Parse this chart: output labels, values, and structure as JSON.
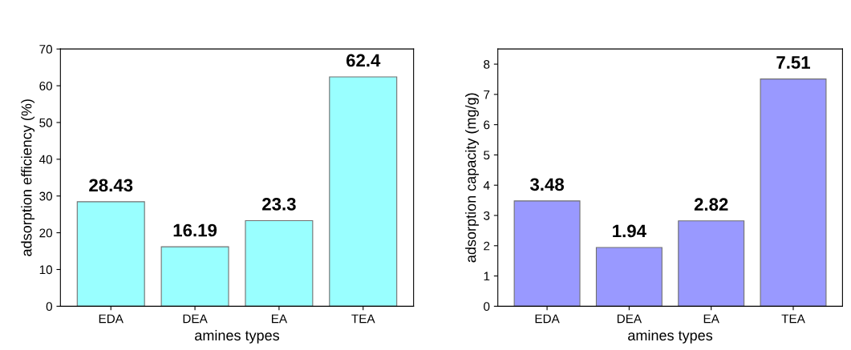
{
  "chart_data": [
    {
      "type": "bar",
      "categories": [
        "EDA",
        "DEA",
        "EA",
        "TEA"
      ],
      "values": [
        28.43,
        16.19,
        23.3,
        62.4
      ],
      "color": "#99ffff",
      "xlabel": "amines types",
      "ylabel": "adsorption efficiency (%)",
      "ylim": [
        0,
        70
      ],
      "yticks": [
        0,
        10,
        20,
        30,
        40,
        50,
        60,
        70
      ],
      "data_labels": true,
      "grid": false,
      "legend": false
    },
    {
      "type": "bar",
      "categories": [
        "EDA",
        "DEA",
        "EA",
        "TEA"
      ],
      "values": [
        3.48,
        1.94,
        2.82,
        7.51
      ],
      "color": "#9999ff",
      "xlabel": "amines types",
      "ylabel": "adsorption capacity (mg/g)",
      "ylim": [
        0,
        8.5
      ],
      "yticks": [
        0,
        1,
        2,
        3,
        4,
        5,
        6,
        7,
        8
      ],
      "data_labels": true,
      "grid": false,
      "legend": false
    }
  ]
}
